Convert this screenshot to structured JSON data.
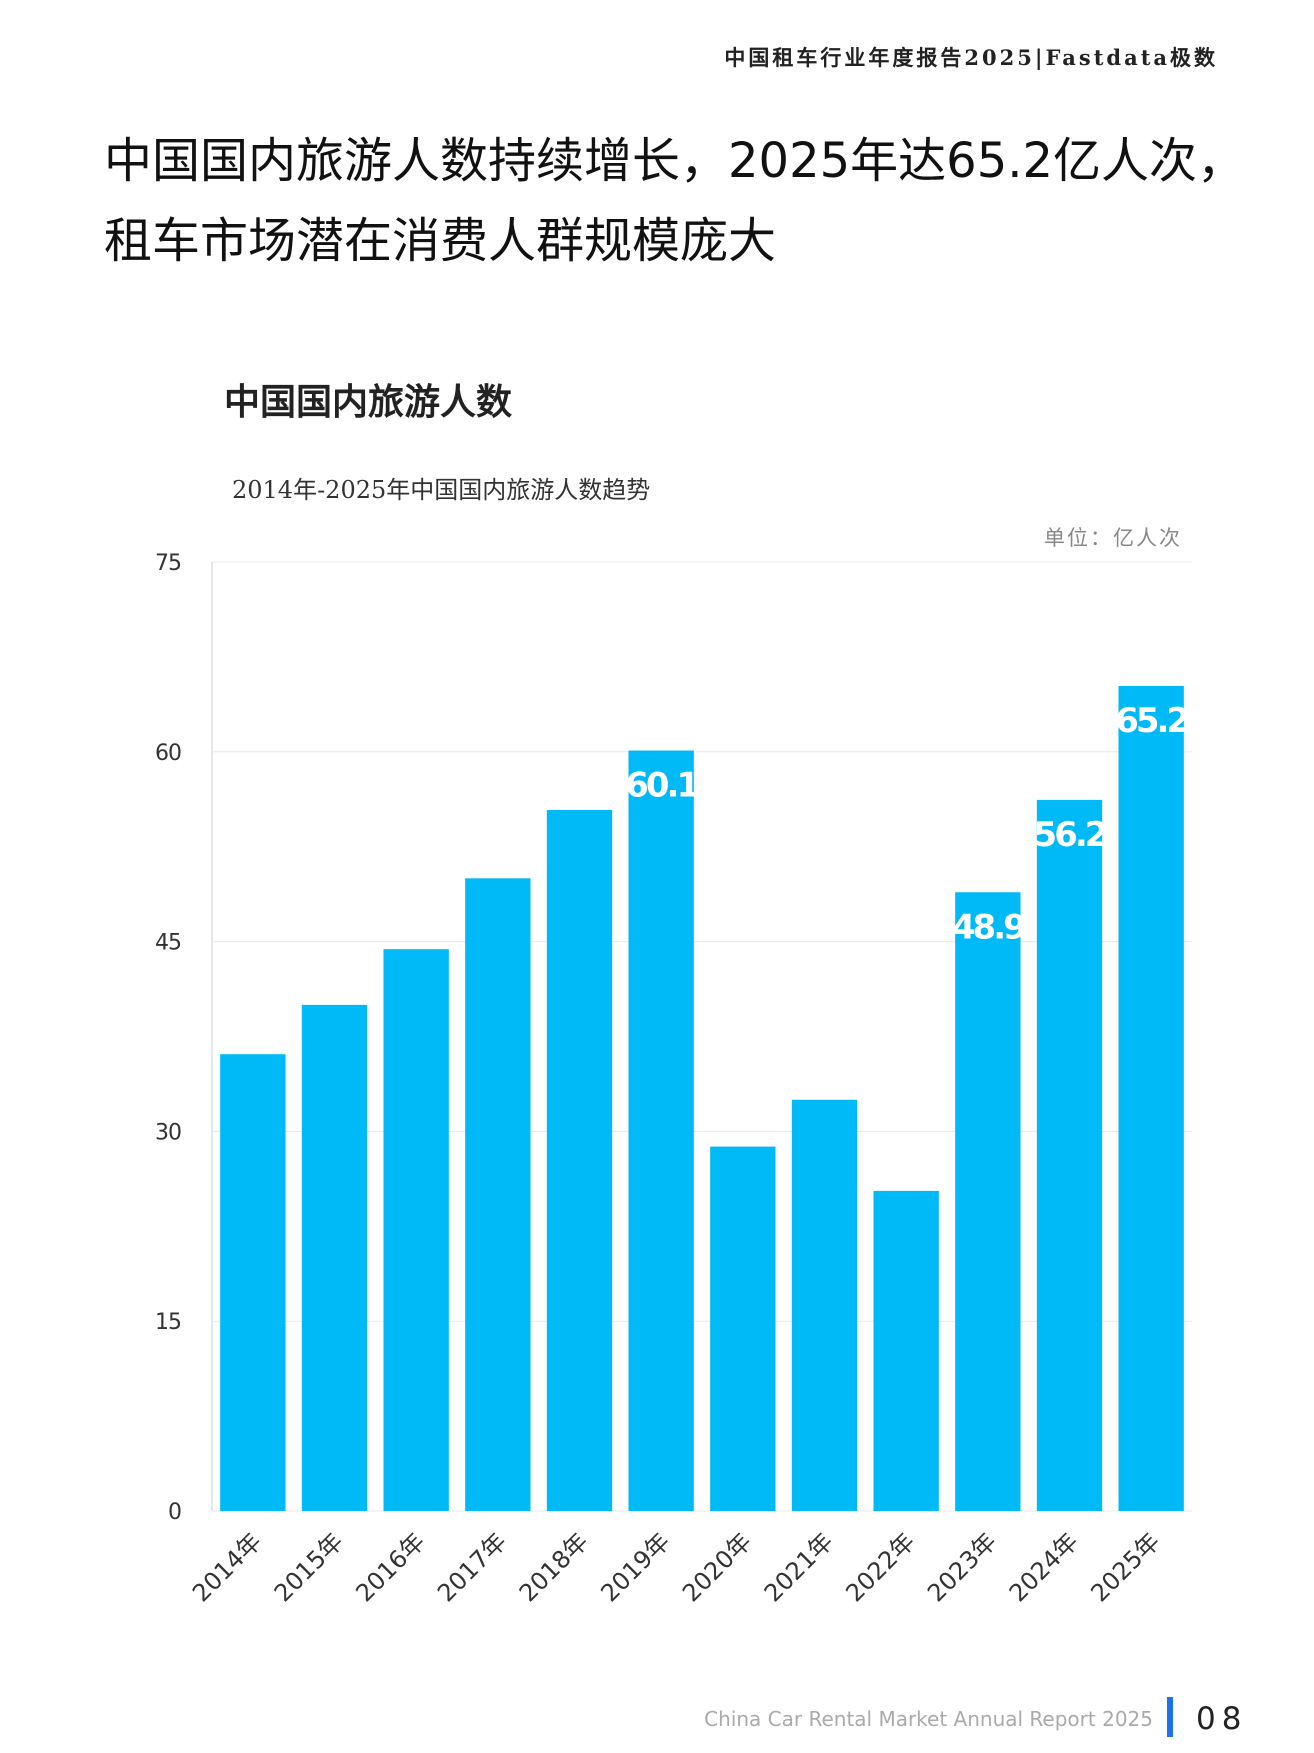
{
  "header": "中国租车行业年度报告2025|Fastdata极数",
  "title_lines": [
    "中国国内旅游人数持续增长，2025年达65.2亿人次，",
    "租车市场潜在消费人群规模庞大"
  ],
  "chart_data": {
    "type": "bar",
    "heading": "中国国内旅游人数",
    "subtitle": "2014年-2025年中国国内旅游人数趋势",
    "unit": "单位：亿人次",
    "categories": [
      "2014年",
      "2015年",
      "2016年",
      "2017年",
      "2018年",
      "2019年",
      "2020年",
      "2021年",
      "2022年",
      "2023年",
      "2024年",
      "2025年"
    ],
    "values": [
      36.1,
      40.0,
      44.4,
      50.0,
      55.4,
      60.1,
      28.8,
      32.5,
      25.3,
      48.9,
      56.2,
      65.2
    ],
    "show_value_label": [
      false,
      false,
      false,
      false,
      false,
      true,
      false,
      false,
      false,
      true,
      true,
      true
    ],
    "color": "#00BAF7",
    "ylim": [
      0,
      75
    ],
    "yticks": [
      0,
      15,
      30,
      45,
      60,
      75
    ],
    "grid": true
  },
  "footer": {
    "text": "China Car Rental Market Annual Report 2025",
    "page": "08"
  }
}
